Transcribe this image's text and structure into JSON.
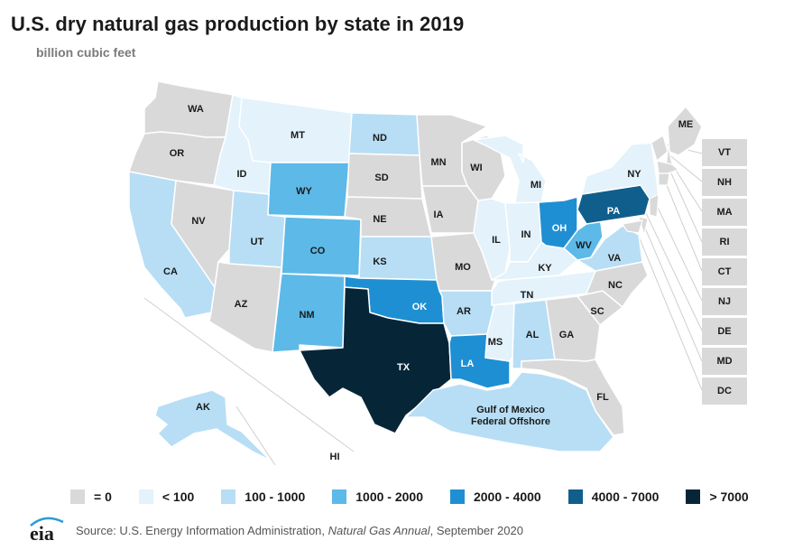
{
  "title": "U.S. dry natural gas production by state in 2019",
  "subtitle": "billion cubic feet",
  "logo_text": "eia",
  "source": {
    "prefix": "Source: U.S. Energy Information Administration, ",
    "publication": "Natural Gas Annual",
    "suffix": ", September 2020"
  },
  "colors": {
    "c0": "#d9d9d9",
    "c1": "#e3f2fb",
    "c2": "#b7def5",
    "c3": "#5cb9e8",
    "c4": "#1f8fd3",
    "c5": "#105e8c",
    "c6": "#062638"
  },
  "legend": [
    {
      "label": "= 0",
      "class": "c0"
    },
    {
      "label": "< 100",
      "class": "c1"
    },
    {
      "label": "100 - 1000",
      "class": "c2"
    },
    {
      "label": "1000 - 2000",
      "class": "c3"
    },
    {
      "label": "2000 - 4000",
      "class": "c4"
    },
    {
      "label": "4000 - 7000",
      "class": "c5"
    },
    {
      "label": "> 7000",
      "class": "c6"
    }
  ],
  "regions": [
    {
      "id": "WA",
      "label": "WA",
      "class": "c0"
    },
    {
      "id": "OR",
      "label": "OR",
      "class": "c0"
    },
    {
      "id": "CA",
      "label": "CA",
      "class": "c2"
    },
    {
      "id": "NV",
      "label": "NV",
      "class": "c0"
    },
    {
      "id": "ID",
      "label": "ID",
      "class": "c1"
    },
    {
      "id": "MT",
      "label": "MT",
      "class": "c1"
    },
    {
      "id": "WY",
      "label": "WY",
      "class": "c3"
    },
    {
      "id": "UT",
      "label": "UT",
      "class": "c2"
    },
    {
      "id": "AZ",
      "label": "AZ",
      "class": "c0"
    },
    {
      "id": "CO",
      "label": "CO",
      "class": "c3"
    },
    {
      "id": "NM",
      "label": "NM",
      "class": "c3"
    },
    {
      "id": "ND",
      "label": "ND",
      "class": "c2"
    },
    {
      "id": "SD",
      "label": "SD",
      "class": "c0"
    },
    {
      "id": "NE",
      "label": "NE",
      "class": "c0"
    },
    {
      "id": "KS",
      "label": "KS",
      "class": "c2"
    },
    {
      "id": "OK",
      "label": "OK",
      "class": "c4"
    },
    {
      "id": "TX",
      "label": "TX",
      "class": "c6"
    },
    {
      "id": "MN",
      "label": "MN",
      "class": "c0"
    },
    {
      "id": "IA",
      "label": "IA",
      "class": "c0"
    },
    {
      "id": "MO",
      "label": "MO",
      "class": "c0"
    },
    {
      "id": "AR",
      "label": "AR",
      "class": "c2"
    },
    {
      "id": "LA",
      "label": "LA",
      "class": "c4"
    },
    {
      "id": "WI",
      "label": "WI",
      "class": "c0"
    },
    {
      "id": "IL",
      "label": "IL",
      "class": "c1"
    },
    {
      "id": "MI",
      "label": "MI",
      "class": "c1"
    },
    {
      "id": "IN",
      "label": "IN",
      "class": "c1"
    },
    {
      "id": "OH",
      "label": "OH",
      "class": "c4"
    },
    {
      "id": "KY",
      "label": "KY",
      "class": "c1"
    },
    {
      "id": "TN",
      "label": "TN",
      "class": "c1"
    },
    {
      "id": "MS",
      "label": "MS",
      "class": "c1"
    },
    {
      "id": "AL",
      "label": "AL",
      "class": "c2"
    },
    {
      "id": "GA",
      "label": "GA",
      "class": "c0"
    },
    {
      "id": "FL",
      "label": "FL",
      "class": "c0"
    },
    {
      "id": "SC",
      "label": "SC",
      "class": "c0"
    },
    {
      "id": "NC",
      "label": "NC",
      "class": "c0"
    },
    {
      "id": "VA",
      "label": "VA",
      "class": "c2"
    },
    {
      "id": "WV",
      "label": "WV",
      "class": "c3"
    },
    {
      "id": "PA",
      "label": "PA",
      "class": "c5"
    },
    {
      "id": "NY",
      "label": "NY",
      "class": "c1"
    },
    {
      "id": "ME",
      "label": "ME",
      "class": "c0"
    },
    {
      "id": "AK",
      "label": "AK",
      "class": "c2"
    },
    {
      "id": "HI",
      "label": "HI",
      "class": "c0"
    },
    {
      "id": "GOM",
      "label": "Gulf of Mexico\nFederal Offshore",
      "class": "c2"
    }
  ],
  "small_states": [
    {
      "id": "VT",
      "label": "VT",
      "class": "c0"
    },
    {
      "id": "NH",
      "label": "NH",
      "class": "c0"
    },
    {
      "id": "MA",
      "label": "MA",
      "class": "c0"
    },
    {
      "id": "RI",
      "label": "RI",
      "class": "c0"
    },
    {
      "id": "CT",
      "label": "CT",
      "class": "c0"
    },
    {
      "id": "NJ",
      "label": "NJ",
      "class": "c0"
    },
    {
      "id": "DE",
      "label": "DE",
      "class": "c0"
    },
    {
      "id": "MD",
      "label": "MD",
      "class": "c0"
    },
    {
      "id": "DC",
      "label": "DC",
      "class": "c0"
    }
  ]
}
